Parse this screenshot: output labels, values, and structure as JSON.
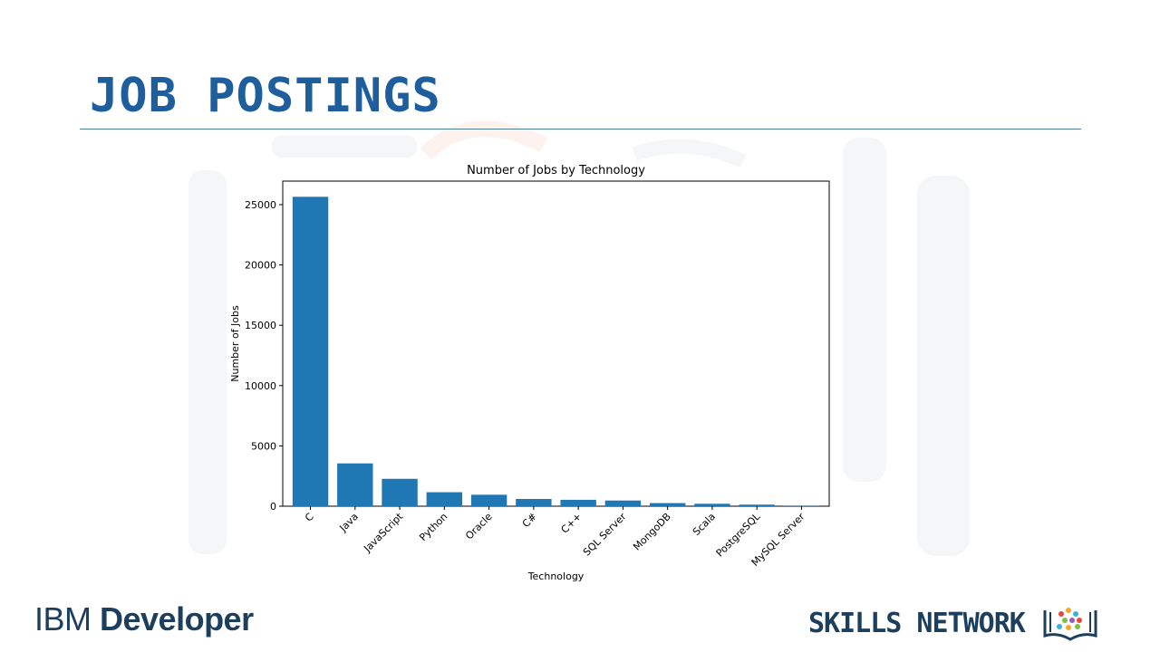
{
  "slide": {
    "title": "JOB POSTINGS"
  },
  "footer": {
    "brand_light": "IBM ",
    "brand_bold": "Developer",
    "network_label": "SKILLS NETWORK",
    "network_icon": "book-dots-icon"
  },
  "colors": {
    "title": "#1f5e9c",
    "bar": "#1f77b4",
    "footer_text": "#1d3f5e"
  },
  "chart_data": {
    "type": "bar",
    "title": "Number of Jobs by Technology",
    "xlabel": "Technology",
    "ylabel": "Number of Jobs",
    "categories": [
      "C",
      "Java",
      "JavaScript",
      "Python",
      "Oracle",
      "C#",
      "C++",
      "SQL Server",
      "MongoDB",
      "Scala",
      "PostgreSQL",
      "MySQL Server"
    ],
    "values": [
      25650,
      3550,
      2270,
      1160,
      950,
      600,
      530,
      470,
      260,
      200,
      130,
      20
    ],
    "yticks": [
      0,
      5000,
      10000,
      15000,
      20000,
      25000
    ],
    "ytick_labels": [
      "0",
      "5000",
      "10000",
      "15000",
      "20000",
      "25000"
    ],
    "ylim": [
      0,
      26950
    ],
    "grid": false,
    "legend": "none"
  }
}
